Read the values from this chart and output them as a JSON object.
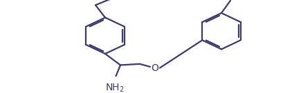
{
  "bg": "#ffffff",
  "bond_color": "#3a3a6e",
  "lw": 1.6,
  "font_size": 9,
  "font_color": "#3a3a6e",
  "figw": 4.22,
  "figh": 1.35,
  "dpi": 100
}
